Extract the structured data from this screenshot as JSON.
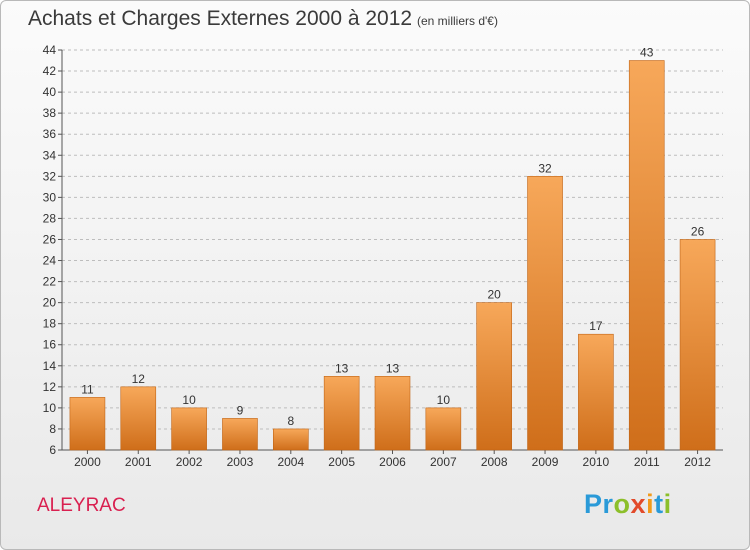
{
  "title": "Achats et Charges Externes 2000 à 2012",
  "subtitle": "(en milliers d'€)",
  "town": "ALEYRAC",
  "logo": {
    "letters": [
      "P",
      "r",
      "o",
      "x",
      "i",
      "t",
      "i"
    ],
    "colors": [
      "#2a9ad8",
      "#2a9ad8",
      "#8cbf2a",
      "#e24a2a",
      "#f29a1a",
      "#2a9ad8",
      "#8cbf2a"
    ]
  },
  "colors": {
    "bar_top": "#f7a85a",
    "bar_bottom": "#cf6e1a",
    "bar_edge": "#c06416",
    "grid": "#bdbdbd"
  },
  "chart_data": {
    "type": "bar",
    "categories": [
      "2000",
      "2001",
      "2002",
      "2003",
      "2004",
      "2005",
      "2006",
      "2007",
      "2008",
      "2009",
      "2010",
      "2011",
      "2012"
    ],
    "values": [
      11,
      12,
      10,
      9,
      8,
      13,
      13,
      10,
      20,
      32,
      17,
      43,
      26
    ],
    "ylim": [
      6,
      44
    ],
    "yticks": [
      6,
      8,
      10,
      12,
      14,
      16,
      18,
      20,
      22,
      24,
      26,
      28,
      30,
      32,
      34,
      36,
      38,
      40,
      42,
      44
    ],
    "grid": "horizontal dashed",
    "legend": "none"
  }
}
